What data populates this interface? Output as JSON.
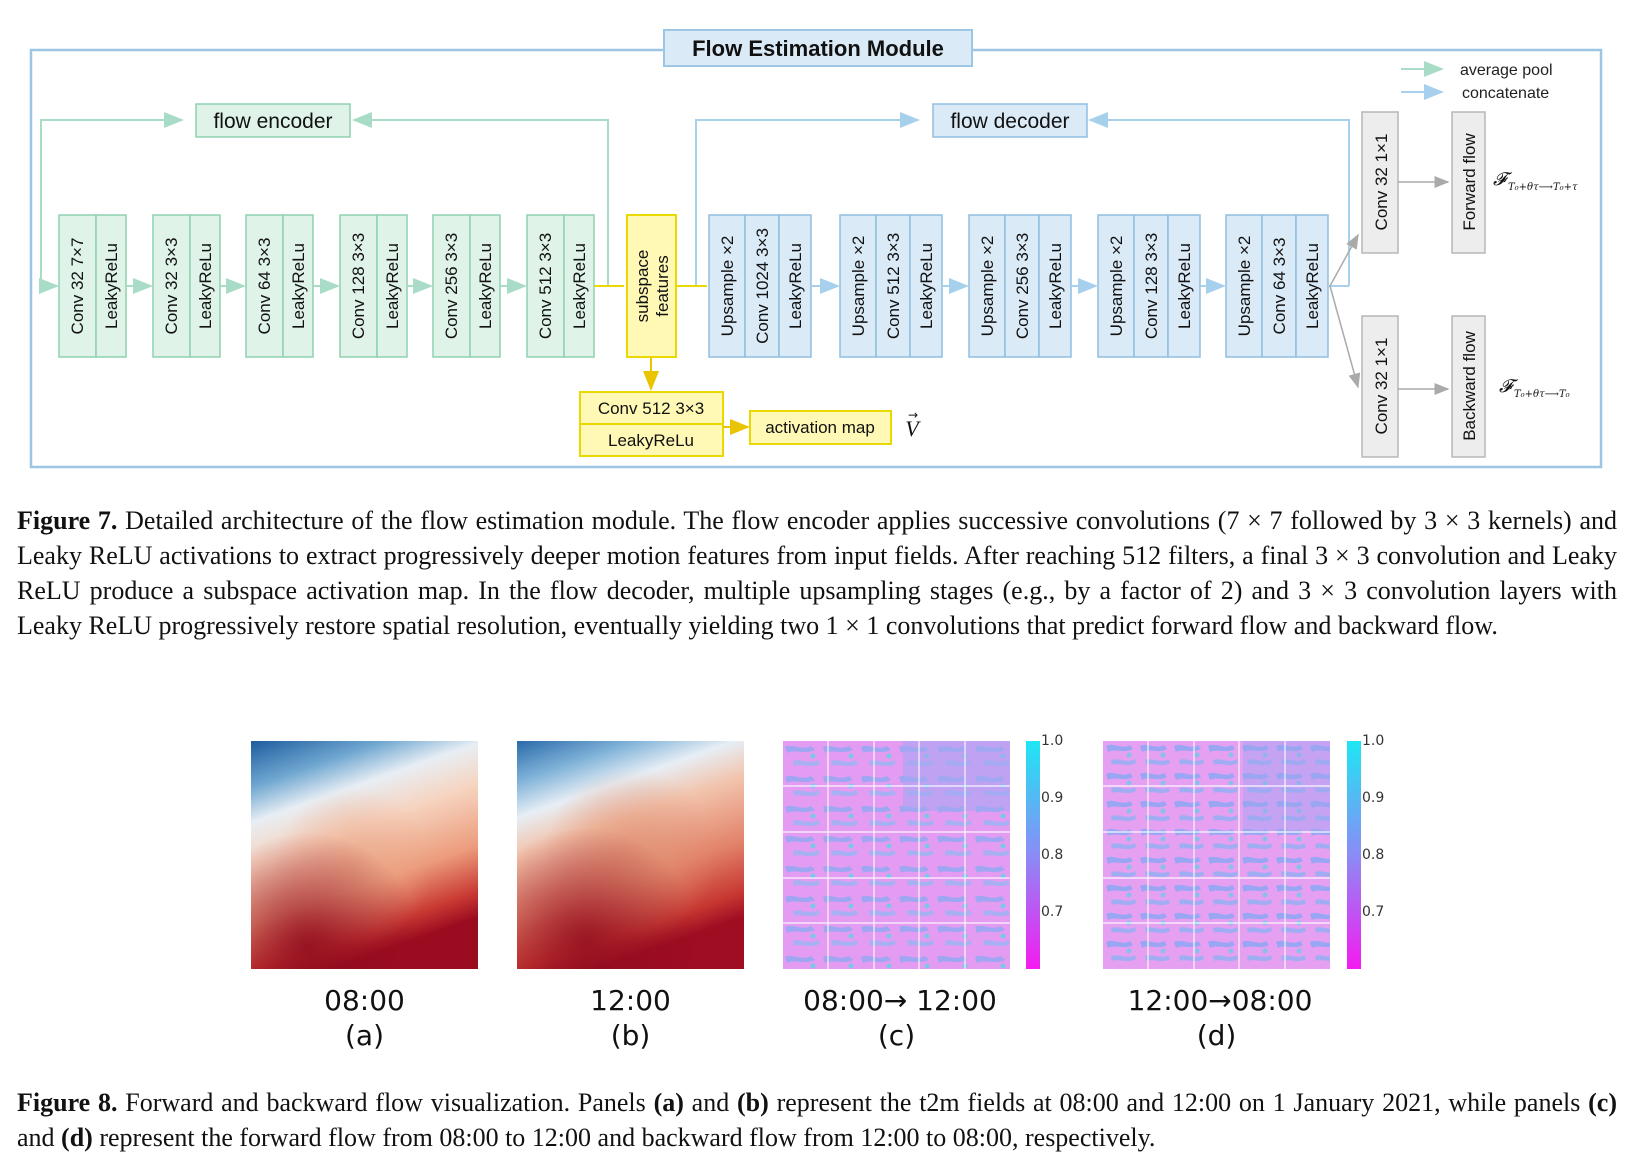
{
  "figure7": {
    "module_title": "Flow Estimation Module",
    "legend": {
      "average_pool": "average pool",
      "concatenate": "concatenate"
    },
    "encoder_label": "flow encoder",
    "decoder_label": "flow decoder",
    "encoder_blocks": [
      {
        "conv": "Conv 32 7×7",
        "act": "LeakyReLu"
      },
      {
        "conv": "Conv 32 3×3",
        "act": "LeakyReLu"
      },
      {
        "conv": "Conv 64 3×3",
        "act": "LeakyReLu"
      },
      {
        "conv": "Conv 128 3×3",
        "act": "LeakyReLu"
      },
      {
        "conv": "Conv 256 3×3",
        "act": "LeakyReLu"
      },
      {
        "conv": "Conv 512 3×3",
        "act": "LeakyReLu"
      }
    ],
    "subspace": {
      "line1": "subspace",
      "line2": "features"
    },
    "decoder_blocks": [
      {
        "up": "Upsample ×2",
        "conv": "Conv 1024 3×3",
        "act": "LeakyReLu"
      },
      {
        "up": "Upsample ×2",
        "conv": "Conv 512 3×3",
        "act": "LeakyReLu"
      },
      {
        "up": "Upsample ×2",
        "conv": "Conv 256 3×3",
        "act": "LeakyReLu"
      },
      {
        "up": "Upsample ×2",
        "conv": "Conv 128 3×3",
        "act": "LeakyReLu"
      },
      {
        "up": "Upsample ×2",
        "conv": "Conv 64 3×3",
        "act": "LeakyReLu"
      }
    ],
    "activation_block": {
      "conv": "Conv 512 3×3",
      "act": "LeakyReLu"
    },
    "activation_map": "activation map",
    "vector_symbol": "V",
    "outputs": [
      {
        "conv": "Conv 32 1×1",
        "name": "Forward flow",
        "formula": "𝓕",
        "subscript": "T₀+θτ⟶T₀+τ"
      },
      {
        "conv": "Conv 32 1×1",
        "name": "Backward flow",
        "formula": "𝓕",
        "subscript": "T₀+θτ⟶T₀"
      }
    ],
    "colors": {
      "frame": "#9cc6e4",
      "encoder_fill": "#dff3e9",
      "encoder_stroke": "#8fd1b0",
      "decoder_fill": "#dbeaf7",
      "decoder_stroke": "#8fbfe2",
      "subspace_fill": "#fff9b5",
      "subspace_stroke": "#e9d900",
      "output_fill": "#ededed",
      "output_stroke": "#b7b7b7",
      "pool_arrow": "#a8dcc6",
      "concat_arrow": "#a6d0ec"
    }
  },
  "caption7": {
    "label": "Figure 7.",
    "text": " Detailed architecture of the flow estimation module. The flow encoder applies successive convolutions (7 × 7 followed by 3 × 3 kernels) and Leaky ReLU activations to extract progressively deeper motion features from input fields. After reaching 512 filters, a final 3 × 3 convolution and Leaky ReLU produce a subspace activation map. In the flow decoder, multiple upsampling stages (e.g., by a factor of 2) and 3 × 3 convolution layers with Leaky ReLU progressively restore spatial resolution, eventually yielding two 1 × 1 convolutions that predict forward flow and backward flow."
  },
  "figure8": {
    "panels": [
      {
        "time": "08:00",
        "letter": "(a)"
      },
      {
        "time": "12:00",
        "letter": "(b)"
      },
      {
        "time": "08:00→ 12:00",
        "letter": "(c)"
      },
      {
        "time": "12:00→08:00",
        "letter": "(d)"
      }
    ],
    "colorbar_ticks": [
      "1.0",
      "0.9",
      "0.8",
      "0.7"
    ]
  },
  "caption8": {
    "label": "Figure 8.",
    "text_1": " Forward and backward flow visualization. Panels ",
    "a": "(a)",
    "text_2": " and ",
    "b": "(b)",
    "text_3": " represent the t2m fields at 08:00 and 12:00 on 1 January 2021, while panels ",
    "c": "(c)",
    "text_4": " and ",
    "d": "(d)",
    "text_5": " represent the forward flow from 08:00 to 12:00 and backward flow from 12:00 to 08:00, respectively."
  }
}
